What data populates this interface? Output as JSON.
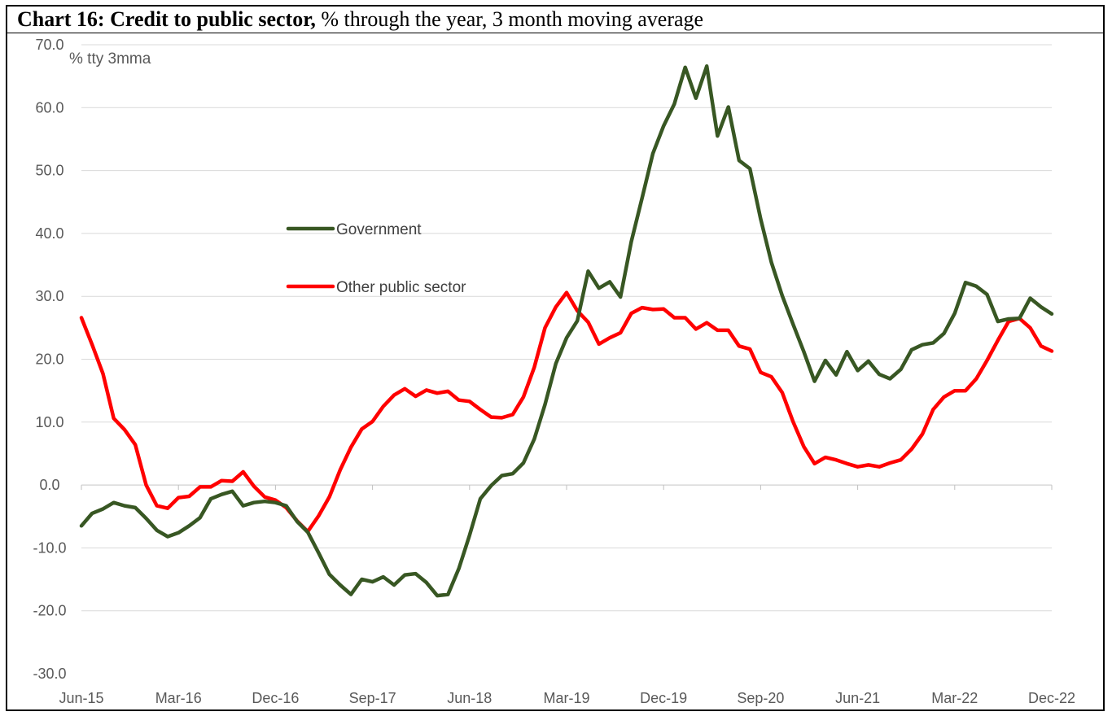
{
  "title": {
    "bold": "Chart 16: Credit to public sector,",
    "rest": "% through the year, 3 month moving average"
  },
  "chart_data": {
    "type": "line",
    "unit_label": "% tty 3mma",
    "ylim": [
      -30,
      70
    ],
    "y_ticks": [
      "70.0",
      "60.0",
      "50.0",
      "40.0",
      "30.0",
      "20.0",
      "10.0",
      "0.0",
      "-10.0",
      "-20.0",
      "-30.0"
    ],
    "x_ticks": [
      "Jun-15",
      "Mar-16",
      "Dec-16",
      "Sep-17",
      "Jun-18",
      "Mar-19",
      "Dec-19",
      "Sep-20",
      "Jun-21",
      "Mar-22",
      "Dec-22"
    ],
    "x_range": [
      "Jun-15",
      "Dec-22"
    ],
    "grid": "horizontal",
    "legend_position": "inside-left",
    "series": [
      {
        "name": "Government",
        "color": "#385723",
        "values": [
          -6.5,
          -4.5,
          -3.8,
          -2.8,
          -3.3,
          -3.6,
          -5.3,
          -7.2,
          -8.2,
          -7.6,
          -6.5,
          -5.2,
          -2.2,
          -1.5,
          -1.0,
          -3.3,
          -2.8,
          -2.6,
          -2.8,
          -3.3,
          -5.8,
          -7.5,
          -10.8,
          -14.2,
          -15.9,
          -17.4,
          -15.0,
          -15.4,
          -14.6,
          -15.9,
          -14.3,
          -14.1,
          -15.5,
          -17.6,
          -17.4,
          -13.3,
          -8.0,
          -2.2,
          -0.1,
          1.5,
          1.8,
          3.5,
          7.3,
          12.8,
          19.3,
          23.4,
          26.1,
          34.0,
          31.3,
          32.3,
          29.9,
          38.7,
          45.6,
          52.7,
          57.1,
          60.6,
          66.4,
          61.5,
          66.6,
          55.5,
          60.1,
          51.6,
          50.3,
          42.3,
          35.4,
          30.1,
          25.6,
          21.2,
          16.5,
          19.8,
          17.5,
          21.2,
          18.2,
          19.7,
          17.6,
          16.9,
          18.4,
          21.5,
          22.3,
          22.6,
          24.1,
          27.3,
          32.2,
          31.6,
          30.3,
          26.0,
          26.4,
          26.5,
          29.7,
          28.3,
          27.2
        ]
      },
      {
        "name": "Other public sector",
        "color": "#ff0000",
        "values": [
          26.6,
          22.3,
          17.7,
          10.6,
          8.8,
          6.4,
          0.0,
          -3.3,
          -3.7,
          -2.0,
          -1.8,
          -0.3,
          -0.3,
          0.7,
          0.6,
          2.1,
          -0.2,
          -1.9,
          -2.4,
          -3.6,
          -5.7,
          -7.4,
          -4.9,
          -1.9,
          2.4,
          6.0,
          8.9,
          10.1,
          12.5,
          14.3,
          15.3,
          14.1,
          15.1,
          14.6,
          14.9,
          13.5,
          13.3,
          12.0,
          10.8,
          10.7,
          11.2,
          14.0,
          18.7,
          25.0,
          28.3,
          30.6,
          27.7,
          25.9,
          22.4,
          23.4,
          24.2,
          27.3,
          28.2,
          27.9,
          28.0,
          26.6,
          26.6,
          24.8,
          25.8,
          24.6,
          24.6,
          22.1,
          21.6,
          17.9,
          17.2,
          14.7,
          10.1,
          6.1,
          3.4,
          4.4,
          4.0,
          3.4,
          2.9,
          3.2,
          2.9,
          3.5,
          4.0,
          5.7,
          8.1,
          12.0,
          14.0,
          15.0,
          15.0,
          16.9,
          19.8,
          23.0,
          26.0,
          26.5,
          25.0,
          22.1,
          21.3
        ]
      }
    ]
  }
}
